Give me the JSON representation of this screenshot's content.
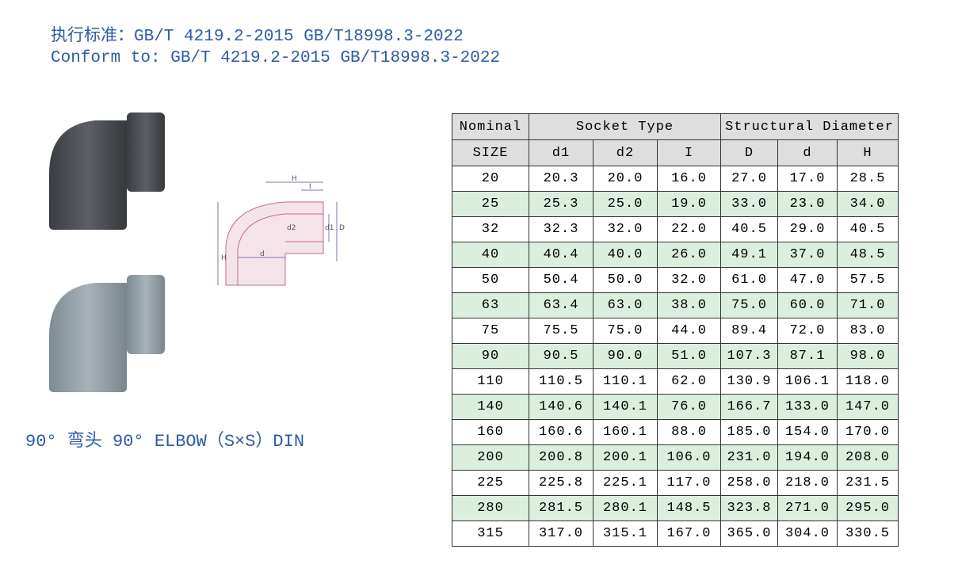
{
  "header": {
    "line_cn": "执行标准：GB/T 4219.2-2015 GB/T18998.3-2022",
    "line_en": "Conform to: GB/T 4219.2-2015 GB/T18998.3-2022"
  },
  "caption": "90° 弯头  90° ELBOW（S×S）DIN",
  "diagram": {
    "labels": [
      "H",
      "I",
      "d2",
      "d1",
      "D",
      "H",
      "d"
    ]
  },
  "table": {
    "group_headers": [
      "Nominal",
      "Socket Type",
      "Structural Diameter"
    ],
    "columns": [
      "SIZE",
      "d1",
      "d2",
      "I",
      "D",
      "d",
      "H"
    ],
    "rows": [
      [
        "20",
        "20.3",
        "20.0",
        "16.0",
        "27.0",
        "17.0",
        "28.5"
      ],
      [
        "25",
        "25.3",
        "25.0",
        "19.0",
        "33.0",
        "23.0",
        "34.0"
      ],
      [
        "32",
        "32.3",
        "32.0",
        "22.0",
        "40.5",
        "29.0",
        "40.5"
      ],
      [
        "40",
        "40.4",
        "40.0",
        "26.0",
        "49.1",
        "37.0",
        "48.5"
      ],
      [
        "50",
        "50.4",
        "50.0",
        "32.0",
        "61.0",
        "47.0",
        "57.5"
      ],
      [
        "63",
        "63.4",
        "63.0",
        "38.0",
        "75.0",
        "60.0",
        "71.0"
      ],
      [
        "75",
        "75.5",
        "75.0",
        "44.0",
        "89.4",
        "72.0",
        "83.0"
      ],
      [
        "90",
        "90.5",
        "90.0",
        "51.0",
        "107.3",
        "87.1",
        "98.0"
      ],
      [
        "110",
        "110.5",
        "110.1",
        "62.0",
        "130.9",
        "106.1",
        "118.0"
      ],
      [
        "140",
        "140.6",
        "140.1",
        "76.0",
        "166.7",
        "133.0",
        "147.0"
      ],
      [
        "160",
        "160.6",
        "160.1",
        "88.0",
        "185.0",
        "154.0",
        "170.0"
      ],
      [
        "200",
        "200.8",
        "200.1",
        "106.0",
        "231.0",
        "194.0",
        "208.0"
      ],
      [
        "225",
        "225.8",
        "225.1",
        "117.0",
        "258.0",
        "218.0",
        "231.5"
      ],
      [
        "280",
        "281.5",
        "280.1",
        "148.5",
        "323.8",
        "271.0",
        "295.0"
      ],
      [
        "315",
        "317.0",
        "315.1",
        "167.0",
        "365.0",
        "304.0",
        "330.5"
      ]
    ]
  }
}
